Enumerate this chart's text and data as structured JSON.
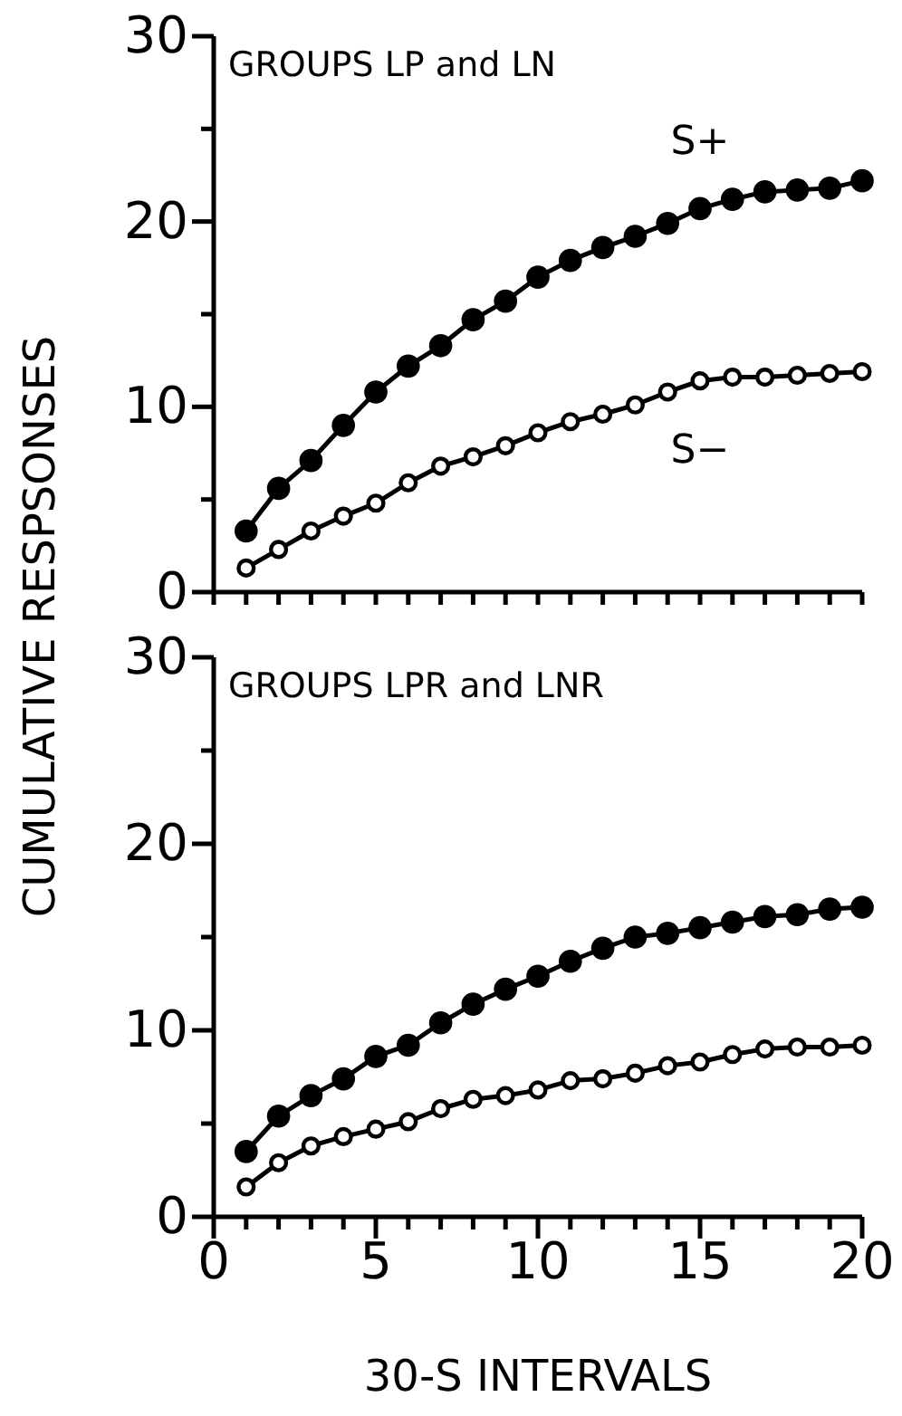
{
  "chart_data": [
    {
      "type": "line",
      "title": "GROUPS LP and LN",
      "ylabel": "CUMULATIVE RESPSONSES",
      "marker": "circle",
      "line_style": "solid",
      "tick_labels": "y",
      "x": [
        1,
        2,
        3,
        4,
        5,
        6,
        7,
        8,
        9,
        10,
        11,
        12,
        13,
        14,
        15,
        16,
        17,
        18,
        19,
        20
      ],
      "xlim": [
        0,
        20
      ],
      "xticks": [
        {
          "value": 0,
          "label": null
        },
        {
          "value": 1,
          "label": null
        },
        {
          "value": 2,
          "label": null
        },
        {
          "value": 3,
          "label": null
        },
        {
          "value": 4,
          "label": null
        },
        {
          "value": 5,
          "label": null
        },
        {
          "value": 6,
          "label": null
        },
        {
          "value": 7,
          "label": null
        },
        {
          "value": 8,
          "label": null
        },
        {
          "value": 9,
          "label": null
        },
        {
          "value": 10,
          "label": null
        },
        {
          "value": 11,
          "label": null
        },
        {
          "value": 12,
          "label": null
        },
        {
          "value": 13,
          "label": null
        },
        {
          "value": 14,
          "label": null
        },
        {
          "value": 15,
          "label": null
        },
        {
          "value": 16,
          "label": null
        },
        {
          "value": 17,
          "label": null
        },
        {
          "value": 18,
          "label": null
        },
        {
          "value": 19,
          "label": null
        },
        {
          "value": 20,
          "label": null
        }
      ],
      "ylim": [
        0,
        30
      ],
      "yticks": [
        0,
        {
          "value": 5,
          "label": null
        },
        10,
        {
          "value": 15,
          "label": null
        },
        20,
        {
          "value": 25,
          "label": null
        },
        30
      ],
      "series": [
        {
          "name": "S+",
          "color": "#000000",
          "values": [
            3.3,
            5.6,
            7.1,
            9.0,
            10.8,
            12.2,
            13.3,
            14.7,
            15.7,
            17.0,
            17.9,
            18.6,
            19.2,
            19.9,
            20.7,
            21.2,
            21.6,
            21.7,
            21.8,
            22.2
          ]
        },
        {
          "name": "S−",
          "color": "#000000",
          "values": [
            1.3,
            2.3,
            3.3,
            4.1,
            4.8,
            5.9,
            6.8,
            7.3,
            7.9,
            8.6,
            9.2,
            9.6,
            10.1,
            10.8,
            11.4,
            11.6,
            11.6,
            11.7,
            11.8,
            11.9
          ]
        }
      ]
    },
    {
      "type": "line",
      "title": "GROUPS LPR and LNR",
      "xlabel": "30-S INTERVALS",
      "marker": "circle",
      "line_style": "solid",
      "x": [
        1,
        2,
        3,
        4,
        5,
        6,
        7,
        8,
        9,
        10,
        11,
        12,
        13,
        14,
        15,
        16,
        17,
        18,
        19,
        20
      ],
      "xlim": [
        0,
        20
      ],
      "xticks": [
        0,
        {
          "value": 1,
          "label": null
        },
        {
          "value": 2,
          "label": null
        },
        {
          "value": 3,
          "label": null
        },
        {
          "value": 4,
          "label": null
        },
        5,
        {
          "value": 6,
          "label": null
        },
        {
          "value": 7,
          "label": null
        },
        {
          "value": 8,
          "label": null
        },
        {
          "value": 9,
          "label": null
        },
        10,
        {
          "value": 11,
          "label": null
        },
        {
          "value": 12,
          "label": null
        },
        {
          "value": 13,
          "label": null
        },
        {
          "value": 14,
          "label": null
        },
        15,
        {
          "value": 16,
          "label": null
        },
        {
          "value": 17,
          "label": null
        },
        {
          "value": 18,
          "label": null
        },
        {
          "value": 19,
          "label": null
        },
        20
      ],
      "ylim": [
        0,
        30
      ],
      "yticks": [
        0,
        {
          "value": 5,
          "label": null
        },
        10,
        {
          "value": 15,
          "label": null
        },
        20,
        {
          "value": 25,
          "label": null
        },
        30
      ],
      "series": [
        {
          "color": "#000000",
          "values": [
            3.5,
            5.4,
            6.5,
            7.4,
            8.6,
            9.2,
            10.4,
            11.4,
            12.2,
            12.9,
            13.7,
            14.4,
            15.0,
            15.2,
            15.5,
            15.8,
            16.1,
            16.2,
            16.5,
            16.6
          ]
        },
        {
          "color": "#000000",
          "values": [
            1.6,
            2.9,
            3.8,
            4.3,
            4.7,
            5.1,
            5.8,
            6.3,
            6.5,
            6.8,
            7.3,
            7.4,
            7.7,
            8.1,
            8.3,
            8.7,
            9.0,
            9.1,
            9.1,
            9.2
          ]
        }
      ]
    }
  ]
}
